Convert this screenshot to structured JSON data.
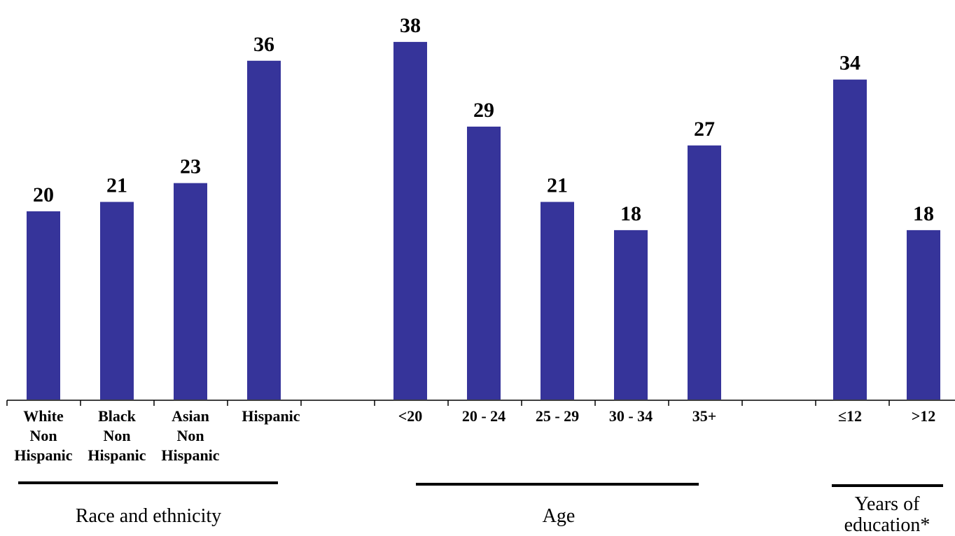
{
  "chart_data": {
    "type": "bar",
    "title": "",
    "xlabel": "",
    "ylabel": "",
    "ylim": [
      0,
      40
    ],
    "grid": false,
    "bar_color": "#36349A",
    "categories": [
      [
        "White",
        "Non",
        "Hispanic"
      ],
      [
        "Black",
        "Non",
        "Hispanic"
      ],
      [
        "Asian",
        "Non",
        "Hispanic"
      ],
      [
        "Hispanic"
      ],
      [
        "<20"
      ],
      [
        "20 - 24"
      ],
      [
        "25 - 29"
      ],
      [
        "30 - 34"
      ],
      [
        "35+"
      ],
      [
        "≤12"
      ],
      [
        ">12"
      ]
    ],
    "values": [
      20,
      21,
      23,
      36,
      38,
      29,
      21,
      18,
      27,
      34,
      18
    ],
    "groups": [
      {
        "label": [
          "Race and ethnicity"
        ]
      },
      {
        "label": [
          "Age"
        ]
      },
      {
        "label": [
          "Years of",
          "education*"
        ]
      }
    ]
  }
}
